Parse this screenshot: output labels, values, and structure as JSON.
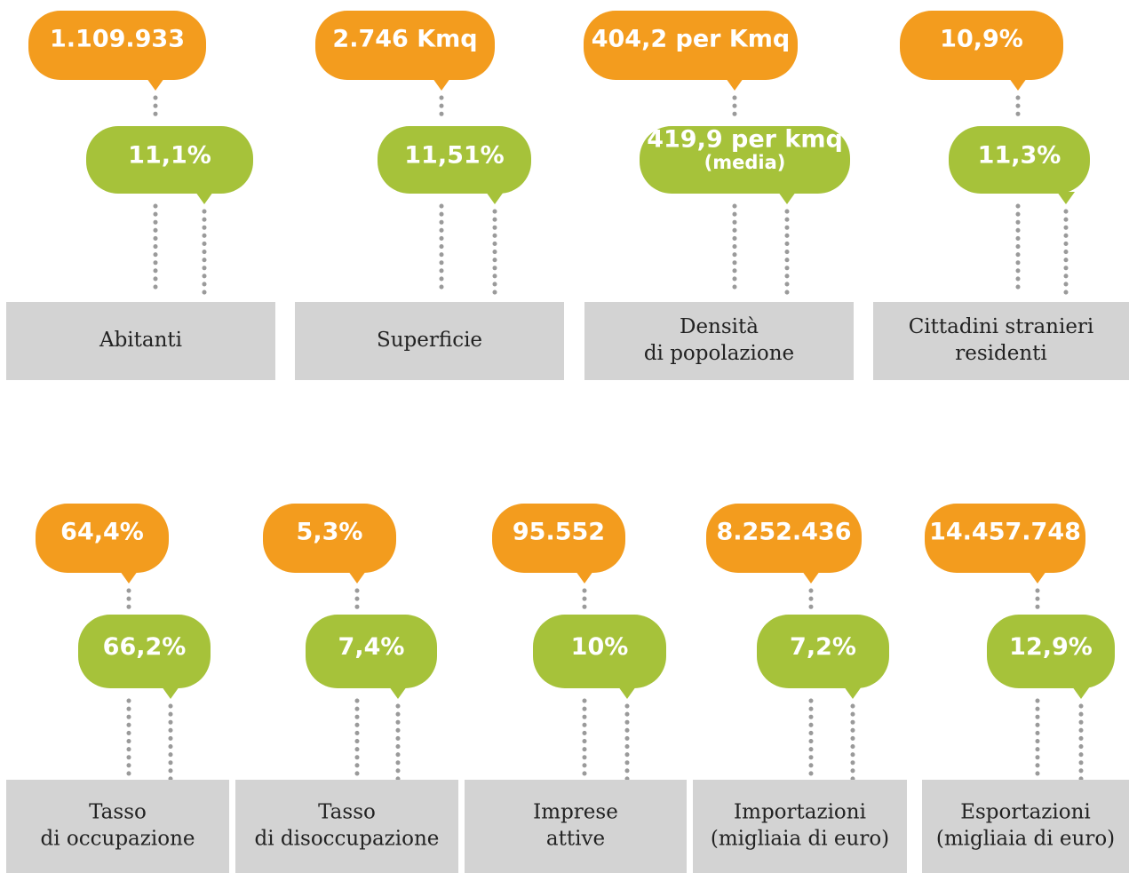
{
  "rows": [
    [
      {
        "value": "1.109.933",
        "comparison": "11,1%",
        "label": [
          "Abitanti"
        ]
      },
      {
        "value": "2.746 Kmq",
        "comparison": "11,51%",
        "label": [
          "Superficie"
        ]
      },
      {
        "value": "404,2 per Kmq",
        "comparison": "419,9 per kmq",
        "comparison_note": "(media)",
        "label": [
          "Densità",
          "di popolazione"
        ]
      },
      {
        "value": "10,9%",
        "comparison": "11,3%",
        "label": [
          "Cittadini stranieri",
          "residenti"
        ]
      }
    ],
    [
      {
        "value": "64,4%",
        "comparison": "66,2%",
        "label": [
          "Tasso",
          "di occupazione"
        ]
      },
      {
        "value": "5,3%",
        "comparison": "7,4%",
        "label": [
          "Tasso",
          "di disoccupazione"
        ]
      },
      {
        "value": "95.552",
        "comparison": "10%",
        "label": [
          "Imprese",
          "attive"
        ]
      },
      {
        "value": "8.252.436",
        "comparison": "7,2%",
        "label": [
          "Importazioni",
          "(migliaia di euro)"
        ]
      },
      {
        "value": "14.457.748",
        "comparison": "12,9%",
        "label": [
          "Esportazioni",
          "(migliaia di euro)"
        ]
      }
    ]
  ]
}
